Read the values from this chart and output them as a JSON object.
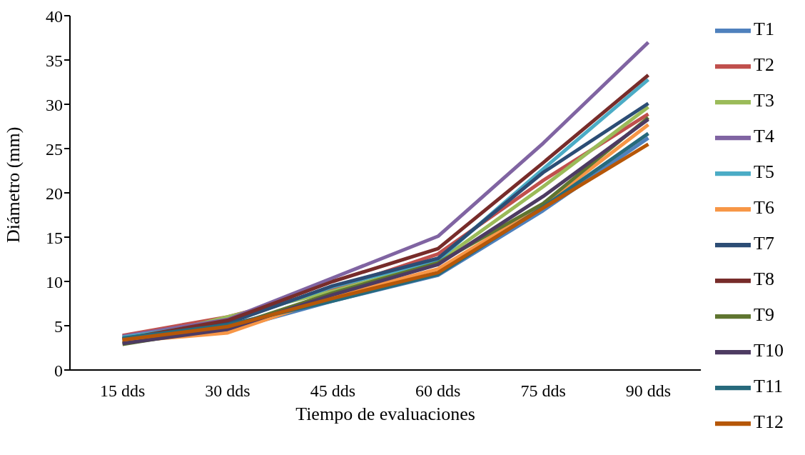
{
  "chart_data": {
    "type": "line",
    "xlabel": "Tiempo de evaluaciones",
    "ylabel": "Diámetro (mm)",
    "categories": [
      "15 dds",
      "30 dds",
      "45 dds",
      "60 dds",
      "75 dds",
      "90 dds"
    ],
    "ylim": [
      0,
      40
    ],
    "yticks": [
      0,
      5,
      10,
      15,
      20,
      25,
      30,
      35,
      40
    ],
    "grid": false,
    "legend": "right",
    "marker": "none",
    "line_style": "solid",
    "series": [
      {
        "name": "T1",
        "color": "#4f81bd",
        "values": [
          3.3,
          4.5,
          7.8,
          10.7,
          18.0,
          26.2
        ]
      },
      {
        "name": "T2",
        "color": "#c0504d",
        "values": [
          3.9,
          6.0,
          9.1,
          13.1,
          21.4,
          28.9
        ]
      },
      {
        "name": "T3",
        "color": "#9bbb59",
        "values": [
          3.1,
          null,
          8.9,
          12.2,
          20.7,
          29.7
        ]
      },
      {
        "name": "T4",
        "color": "#8064a2",
        "values": [
          3.8,
          5.7,
          10.4,
          15.1,
          25.6,
          37.0
        ]
      },
      {
        "name": "T5",
        "color": "#4bacc6",
        "values": [
          3.7,
          5.4,
          9.4,
          12.4,
          22.7,
          32.8
        ]
      },
      {
        "name": "T6",
        "color": "#f79646",
        "values": [
          3.2,
          4.2,
          8.3,
          11.4,
          18.6,
          27.7
        ]
      },
      {
        "name": "T7",
        "color": "#2c4d75",
        "values": [
          3.5,
          5.3,
          9.5,
          12.6,
          22.3,
          30.1
        ]
      },
      {
        "name": "T8",
        "color": "#772c2a",
        "values": [
          3.5,
          5.6,
          10.0,
          13.7,
          23.4,
          33.3
        ]
      },
      {
        "name": "T9",
        "color": "#5f7530",
        "values": [
          2.9,
          4.8,
          8.7,
          12.1,
          18.8,
          28.5
        ]
      },
      {
        "name": "T10",
        "color": "#4d3b62",
        "values": [
          3.0,
          4.6,
          8.5,
          11.9,
          19.6,
          28.3
        ]
      },
      {
        "name": "T11",
        "color": "#276a7c",
        "values": [
          3.6,
          5.1,
          7.8,
          10.8,
          18.4,
          26.7
        ]
      },
      {
        "name": "T12",
        "color": "#b65708",
        "values": [
          3.4,
          4.9,
          8.1,
          11.0,
          18.3,
          25.5
        ]
      }
    ]
  }
}
